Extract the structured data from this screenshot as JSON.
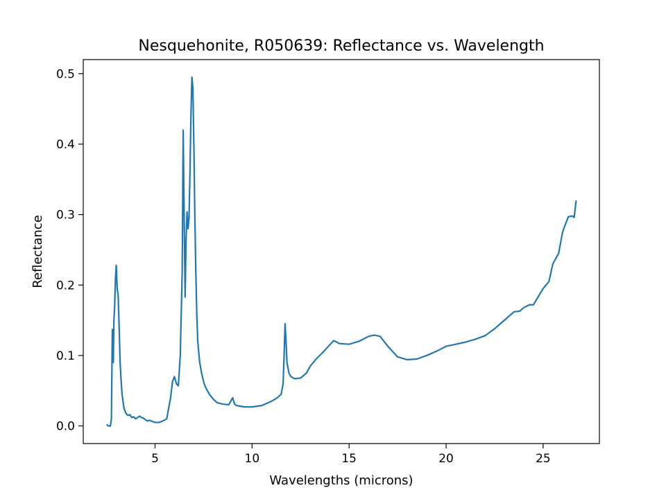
{
  "chart_data": {
    "type": "line",
    "title": "Nesquehonite, R050639: Reflectance vs. Wavelength",
    "xlabel": "Wavelengths (microns)",
    "ylabel": "Reflectance",
    "xlim": [
      1.3,
      27.9
    ],
    "ylim": [
      -0.025,
      0.52
    ],
    "xticks": [
      5,
      10,
      15,
      20,
      25
    ],
    "yticks": [
      0.0,
      0.1,
      0.2,
      0.3,
      0.4,
      0.5
    ],
    "ytick_labels": [
      "0.0",
      "0.1",
      "0.2",
      "0.3",
      "0.4",
      "0.5"
    ],
    "grid": false,
    "legend": "none",
    "line_color": "#1f77b4",
    "series": [
      {
        "x": [
          2.5,
          2.6,
          2.7,
          2.75,
          2.8,
          2.85,
          2.88,
          2.92,
          2.96,
          3.0,
          3.05,
          3.1,
          3.15,
          3.2,
          3.25,
          3.3,
          3.4,
          3.5,
          3.6,
          3.7,
          3.8,
          3.9,
          4.0,
          4.1,
          4.2,
          4.3,
          4.4,
          4.5,
          4.6,
          4.7,
          4.8,
          4.9,
          5.0,
          5.2,
          5.4,
          5.6,
          5.8,
          5.9,
          6.0,
          6.1,
          6.2,
          6.3,
          6.4,
          6.45,
          6.5,
          6.55,
          6.6,
          6.65,
          6.7,
          6.75,
          6.8,
          6.85,
          6.9,
          6.95,
          7.0,
          7.05,
          7.1,
          7.15,
          7.2,
          7.3,
          7.4,
          7.5,
          7.6,
          7.8,
          8.0,
          8.2,
          8.5,
          8.8,
          9.0,
          9.1,
          9.2,
          9.4,
          9.6,
          10.0,
          10.5,
          11.0,
          11.3,
          11.5,
          11.6,
          11.65,
          11.7,
          11.75,
          11.8,
          11.9,
          12.0,
          12.2,
          12.5,
          12.8,
          13.0,
          13.3,
          13.6,
          14.0,
          14.2,
          14.3,
          14.5,
          15.0,
          15.5,
          16.0,
          16.3,
          16.6,
          17.0,
          17.5,
          18.0,
          18.5,
          19.0,
          19.5,
          20.0,
          20.5,
          21.0,
          21.5,
          22.0,
          22.5,
          23.0,
          23.5,
          23.8,
          24.0,
          24.3,
          24.5,
          25.0,
          25.3,
          25.5,
          25.8,
          26.0,
          26.2,
          26.3,
          26.5,
          26.6,
          26.7
        ],
        "y": [
          0.002,
          0.0,
          0.0,
          0.01,
          0.137,
          0.09,
          0.15,
          0.17,
          0.21,
          0.228,
          0.195,
          0.185,
          0.14,
          0.09,
          0.065,
          0.045,
          0.025,
          0.018,
          0.015,
          0.016,
          0.012,
          0.013,
          0.01,
          0.012,
          0.014,
          0.012,
          0.011,
          0.009,
          0.007,
          0.008,
          0.007,
          0.006,
          0.005,
          0.005,
          0.007,
          0.01,
          0.04,
          0.063,
          0.07,
          0.06,
          0.057,
          0.1,
          0.22,
          0.42,
          0.3,
          0.183,
          0.265,
          0.304,
          0.28,
          0.295,
          0.36,
          0.44,
          0.495,
          0.48,
          0.4,
          0.3,
          0.22,
          0.16,
          0.12,
          0.09,
          0.075,
          0.063,
          0.055,
          0.045,
          0.038,
          0.033,
          0.031,
          0.03,
          0.04,
          0.031,
          0.029,
          0.028,
          0.027,
          0.027,
          0.029,
          0.035,
          0.04,
          0.045,
          0.06,
          0.1,
          0.145,
          0.12,
          0.09,
          0.075,
          0.07,
          0.067,
          0.068,
          0.075,
          0.085,
          0.095,
          0.103,
          0.115,
          0.121,
          0.12,
          0.117,
          0.116,
          0.12,
          0.127,
          0.129,
          0.127,
          0.113,
          0.098,
          0.094,
          0.095,
          0.1,
          0.106,
          0.113,
          0.116,
          0.119,
          0.123,
          0.128,
          0.138,
          0.15,
          0.162,
          0.163,
          0.168,
          0.172,
          0.172,
          0.195,
          0.205,
          0.23,
          0.245,
          0.275,
          0.29,
          0.297,
          0.298,
          0.296,
          0.32
        ]
      }
    ]
  }
}
